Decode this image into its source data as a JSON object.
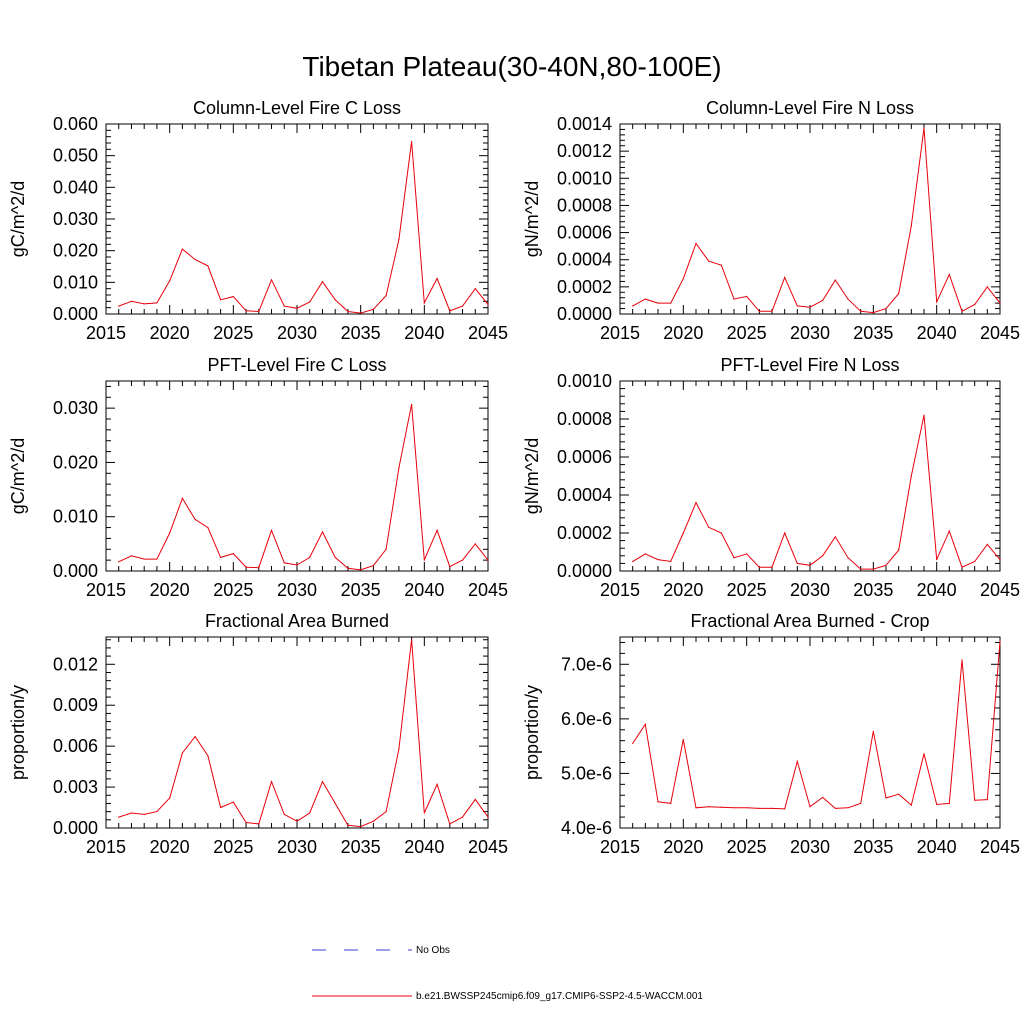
{
  "figure": {
    "title": "Tibetan Plateau(30-40N,80-100E)",
    "legend": [
      {
        "label": "No Obs",
        "color": "#3b3bd6",
        "style": "dashed"
      },
      {
        "label": "b.e21.BWSSP245cmip6.f09_g17.CMIP6-SSP2-4.5-WACCM.001",
        "color": "#e8000b",
        "style": "solid"
      }
    ]
  },
  "chart_data": [
    {
      "type": "line",
      "title": "Column-Level Fire C Loss",
      "ylabel": "gC/m^2/d",
      "xlim": [
        2015,
        2045
      ],
      "ylim": [
        0,
        0.06
      ],
      "xticks": [
        "2015",
        "2020",
        "2025",
        "2030",
        "2035",
        "2040",
        "2045"
      ],
      "yticks": [
        "0.000",
        "0.010",
        "0.020",
        "0.030",
        "0.040",
        "0.050",
        "0.060"
      ],
      "x": [
        2016,
        2017,
        2018,
        2019,
        2020,
        2021,
        2022,
        2023,
        2024,
        2025,
        2026,
        2027,
        2028,
        2029,
        2030,
        2031,
        2032,
        2033,
        2034,
        2035,
        2036,
        2037,
        2038,
        2039,
        2040,
        2041,
        2042,
        2043,
        2044,
        2045
      ],
      "series": [
        {
          "color": "#e8000b",
          "values": [
            0.0025,
            0.004,
            0.0032,
            0.0035,
            0.0105,
            0.0205,
            0.0172,
            0.0152,
            0.0045,
            0.0055,
            0.001,
            0.0008,
            0.0108,
            0.0025,
            0.0018,
            0.0038,
            0.0102,
            0.0045,
            0.0008,
            0.0003,
            0.0015,
            0.0058,
            0.0235,
            0.0545,
            0.0035,
            0.0112,
            0.001,
            0.0025,
            0.008,
            0.003
          ]
        }
      ]
    },
    {
      "type": "line",
      "title": "Column-Level Fire N Loss",
      "ylabel": "gN/m^2/d",
      "xlim": [
        2015,
        2045
      ],
      "ylim": [
        0,
        0.0014
      ],
      "xticks": [
        "2015",
        "2020",
        "2025",
        "2030",
        "2035",
        "2040",
        "2045"
      ],
      "yticks": [
        "0.0000",
        "0.0002",
        "0.0004",
        "0.0006",
        "0.0008",
        "0.0010",
        "0.0012",
        "0.0014"
      ],
      "x": [
        2016,
        2017,
        2018,
        2019,
        2020,
        2021,
        2022,
        2023,
        2024,
        2025,
        2026,
        2027,
        2028,
        2029,
        2030,
        2031,
        2032,
        2033,
        2034,
        2035,
        2036,
        2037,
        2038,
        2039,
        2040,
        2041,
        2042,
        2043,
        2044,
        2045
      ],
      "series": [
        {
          "color": "#e8000b",
          "values": [
            6e-05,
            0.00011,
            8e-05,
            8e-05,
            0.00026,
            0.00052,
            0.00039,
            0.00036,
            0.00011,
            0.00013,
            2e-05,
            2e-05,
            0.00027,
            6e-05,
            5e-05,
            0.0001,
            0.00025,
            0.00011,
            2e-05,
            1e-05,
            4e-05,
            0.00015,
            0.00065,
            0.00137,
            9e-05,
            0.00029,
            2e-05,
            7e-05,
            0.0002,
            8e-05
          ]
        }
      ]
    },
    {
      "type": "line",
      "title": "PFT-Level Fire C Loss",
      "ylabel": "gC/m^2/d",
      "xlim": [
        2015,
        2045
      ],
      "ylim": [
        0,
        0.035
      ],
      "xticks": [
        "2015",
        "2020",
        "2025",
        "2030",
        "2035",
        "2040",
        "2045"
      ],
      "yticks": [
        "0.000",
        "0.010",
        "0.020",
        "0.030"
      ],
      "x": [
        2016,
        2017,
        2018,
        2019,
        2020,
        2021,
        2022,
        2023,
        2024,
        2025,
        2026,
        2027,
        2028,
        2029,
        2030,
        2031,
        2032,
        2033,
        2034,
        2035,
        2036,
        2037,
        2038,
        2039,
        2040,
        2041,
        2042,
        2043,
        2044,
        2045
      ],
      "series": [
        {
          "color": "#e8000b",
          "values": [
            0.0017,
            0.0028,
            0.0022,
            0.0022,
            0.007,
            0.0134,
            0.0095,
            0.008,
            0.0025,
            0.0032,
            0.0007,
            0.0006,
            0.0075,
            0.0015,
            0.0011,
            0.0025,
            0.0072,
            0.0025,
            0.0005,
            0.0002,
            0.001,
            0.004,
            0.019,
            0.0307,
            0.002,
            0.0075,
            0.0008,
            0.002,
            0.005,
            0.002
          ]
        }
      ]
    },
    {
      "type": "line",
      "title": "PFT-Level Fire N Loss",
      "ylabel": "gN/m^2/d",
      "xlim": [
        2015,
        2045
      ],
      "ylim": [
        0,
        0.001
      ],
      "xticks": [
        "2015",
        "2020",
        "2025",
        "2030",
        "2035",
        "2040",
        "2045"
      ],
      "yticks": [
        "0.0000",
        "0.0002",
        "0.0004",
        "0.0006",
        "0.0008",
        "0.0010"
      ],
      "x": [
        2016,
        2017,
        2018,
        2019,
        2020,
        2021,
        2022,
        2023,
        2024,
        2025,
        2026,
        2027,
        2028,
        2029,
        2030,
        2031,
        2032,
        2033,
        2034,
        2035,
        2036,
        2037,
        2038,
        2039,
        2040,
        2041,
        2042,
        2043,
        2044,
        2045
      ],
      "series": [
        {
          "color": "#e8000b",
          "values": [
            5e-05,
            9e-05,
            6e-05,
            5e-05,
            0.0002,
            0.00036,
            0.00023,
            0.0002,
            7e-05,
            9e-05,
            2e-05,
            2e-05,
            0.0002,
            4e-05,
            3e-05,
            8e-05,
            0.00018,
            7e-05,
            1e-05,
            1e-05,
            3e-05,
            0.00011,
            0.0005,
            0.00082,
            6e-05,
            0.00021,
            2e-05,
            5e-05,
            0.00014,
            6e-05
          ]
        }
      ]
    },
    {
      "type": "line",
      "title": "Fractional Area Burned",
      "ylabel": "proportion/y",
      "xlim": [
        2015,
        2045
      ],
      "ylim": [
        0,
        0.014
      ],
      "xticks": [
        "2015",
        "2020",
        "2025",
        "2030",
        "2035",
        "2040",
        "2045"
      ],
      "yticks": [
        "0.000",
        "0.003",
        "0.006",
        "0.009",
        "0.012"
      ],
      "x": [
        2016,
        2017,
        2018,
        2019,
        2020,
        2021,
        2022,
        2023,
        2024,
        2025,
        2026,
        2027,
        2028,
        2029,
        2030,
        2031,
        2032,
        2033,
        2034,
        2035,
        2036,
        2037,
        2038,
        2039,
        2040,
        2041,
        2042,
        2043,
        2044,
        2045
      ],
      "series": [
        {
          "color": "#e8000b",
          "values": [
            0.0008,
            0.0011,
            0.001,
            0.0012,
            0.0022,
            0.0055,
            0.0067,
            0.0053,
            0.0015,
            0.0019,
            0.0004,
            0.0003,
            0.0034,
            0.001,
            0.0005,
            0.0011,
            0.0034,
            0.0018,
            0.0002,
            0.0001,
            0.0005,
            0.0012,
            0.0058,
            0.0138,
            0.0011,
            0.0032,
            0.0003,
            0.0008,
            0.0021,
            0.0008
          ]
        }
      ]
    },
    {
      "type": "line",
      "title": "Fractional Area Burned - Crop",
      "ylabel": "proportion/y",
      "xlim": [
        2015,
        2045
      ],
      "ylim": [
        4e-06,
        7.5e-06
      ],
      "xticks": [
        "2015",
        "2020",
        "2025",
        "2030",
        "2035",
        "2040",
        "2045"
      ],
      "yticks": [
        "4.0e-6",
        "5.0e-6",
        "6.0e-6",
        "7.0e-6"
      ],
      "x": [
        2016,
        2017,
        2018,
        2019,
        2020,
        2021,
        2022,
        2023,
        2024,
        2025,
        2026,
        2027,
        2028,
        2029,
        2030,
        2031,
        2032,
        2033,
        2034,
        2035,
        2036,
        2037,
        2038,
        2039,
        2040,
        2041,
        2042,
        2043,
        2044,
        2045
      ],
      "series": [
        {
          "color": "#e8000b",
          "values": [
            5.55e-06,
            5.9e-06,
            4.48e-06,
            4.45e-06,
            5.62e-06,
            4.37e-06,
            4.39e-06,
            4.38e-06,
            4.37e-06,
            4.37e-06,
            4.36e-06,
            4.36e-06,
            4.35e-06,
            5.22e-06,
            4.39e-06,
            4.56e-06,
            4.36e-06,
            4.37e-06,
            4.45e-06,
            5.77e-06,
            4.55e-06,
            4.62e-06,
            4.42e-06,
            5.36e-06,
            4.43e-06,
            4.45e-06,
            7.08e-06,
            4.51e-06,
            4.52e-06,
            7.42e-06
          ]
        }
      ]
    }
  ]
}
